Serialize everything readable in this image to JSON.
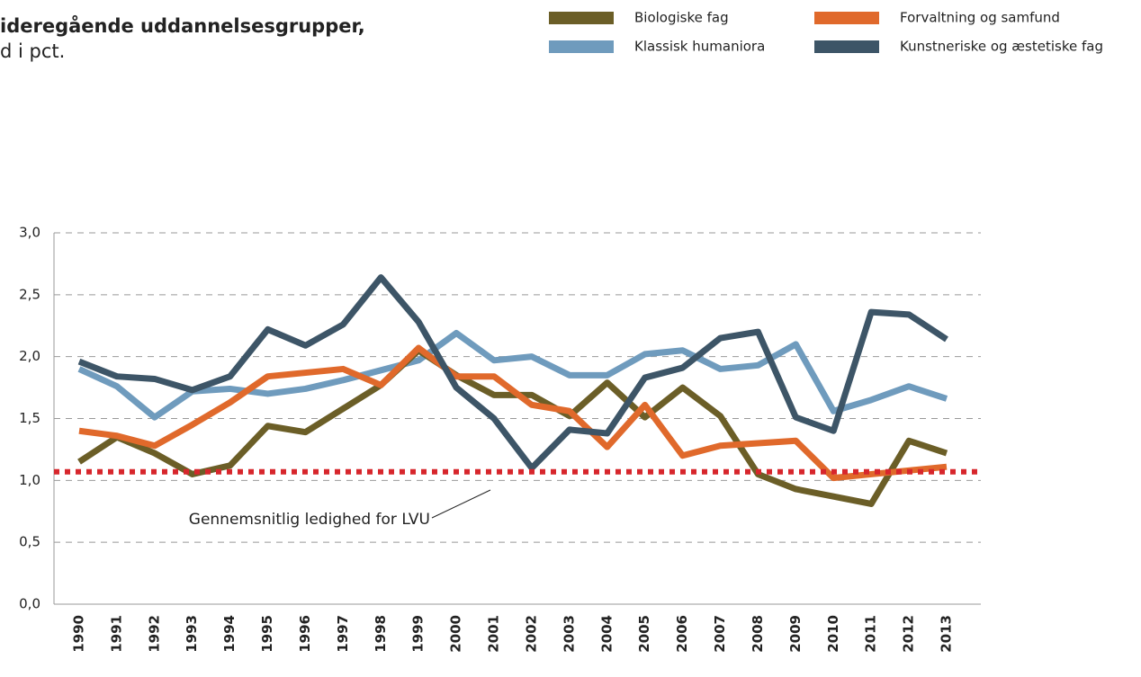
{
  "chart_data": {
    "type": "line",
    "title_lines": [
      "ideregående uddannelsesgrupper,",
      "d i pct."
    ],
    "categories": [
      "1990",
      "1991",
      "1992",
      "1993",
      "1994",
      "1995",
      "1996",
      "1997",
      "1998",
      "1999",
      "2000",
      "2001",
      "2002",
      "2003",
      "2004",
      "2005",
      "2006",
      "2007",
      "2008",
      "2009",
      "2010",
      "2011",
      "2012",
      "2013"
    ],
    "series": [
      {
        "name": "Biologiske fag",
        "color": "#6b5e27",
        "values": [
          1.15,
          1.35,
          1.22,
          1.05,
          1.12,
          1.44,
          1.39,
          1.58,
          1.77,
          2.05,
          1.85,
          1.69,
          1.69,
          1.52,
          1.79,
          1.51,
          1.75,
          1.52,
          1.05,
          0.93,
          0.87,
          0.81,
          1.32,
          1.22
        ]
      },
      {
        "name": "Forvaltning og samfund",
        "color": "#e0692b",
        "values": [
          1.4,
          1.36,
          1.28,
          1.45,
          1.63,
          1.84,
          1.87,
          1.9,
          1.77,
          2.07,
          1.84,
          1.84,
          1.61,
          1.56,
          1.27,
          1.61,
          1.2,
          1.28,
          1.3,
          1.32,
          1.02,
          1.05,
          1.08,
          1.11
        ]
      },
      {
        "name": "Klassisk humaniora",
        "color": "#6f9bbd",
        "values": [
          1.9,
          1.76,
          1.51,
          1.72,
          1.74,
          1.7,
          1.74,
          1.81,
          1.89,
          1.97,
          2.19,
          1.97,
          2.0,
          1.85,
          1.85,
          2.02,
          2.05,
          1.9,
          1.93,
          2.1,
          1.56,
          1.65,
          1.76,
          1.66
        ]
      },
      {
        "name": "Kunstneriske og æstetiske fag",
        "color": "#3d5567",
        "values": [
          1.96,
          1.84,
          1.82,
          1.73,
          1.84,
          2.22,
          2.09,
          2.26,
          2.64,
          2.28,
          1.75,
          1.5,
          1.1,
          1.41,
          1.38,
          1.83,
          1.91,
          2.15,
          2.2,
          1.51,
          1.4,
          2.36,
          2.34,
          2.14
        ]
      }
    ],
    "reference": {
      "value": 1.07,
      "label": "Gennemsnitlig ledighed for LVU",
      "color": "#d7262c"
    },
    "ylim": [
      0,
      3
    ],
    "yticks": [
      {
        "value": 0,
        "label": "0,0"
      },
      {
        "value": 0.5,
        "label": "0,5"
      },
      {
        "value": 1,
        "label": "1,0"
      },
      {
        "value": 1.5,
        "label": "1,5"
      },
      {
        "value": 2,
        "label": "2,0"
      },
      {
        "value": 2.5,
        "label": "2,5"
      },
      {
        "value": 3,
        "label": "3,0"
      }
    ],
    "grid": true
  }
}
